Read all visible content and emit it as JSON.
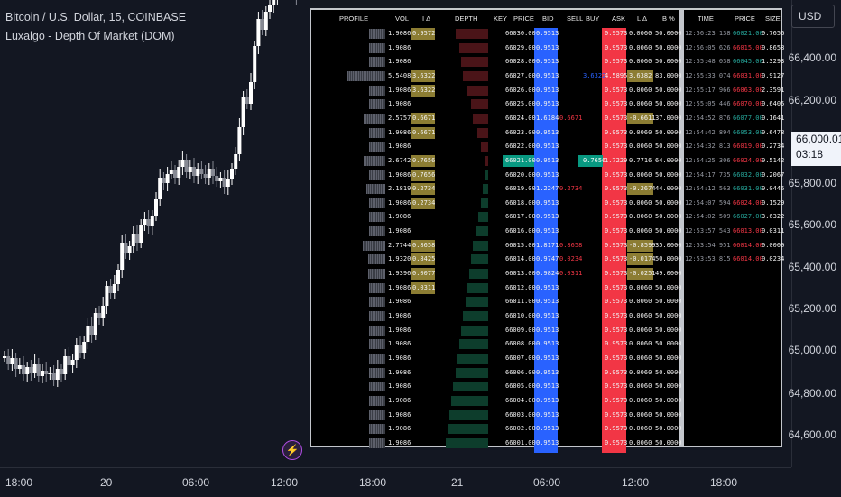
{
  "header": {
    "title": "Bitcoin / U.S. Dollar, 15, COINBASE",
    "indicator": "Luxalgo - Depth Of Market (DOM)"
  },
  "price_axis": {
    "currency": "USD",
    "ticks": [
      "66,400.00",
      "66,200.00",
      "66,000.00",
      "65,800.00",
      "65,600.00",
      "65,400.00",
      "65,200.00",
      "65,000.00",
      "64,800.00",
      "64,600.00"
    ],
    "current_price": "66,000.01",
    "countdown": "03:18"
  },
  "time_axis": {
    "ticks": [
      "18:00",
      "20",
      "06:00",
      "12:00",
      "18:00",
      "21",
      "06:00",
      "12:00",
      "18:00"
    ]
  },
  "colors": {
    "bid": "#2962ff",
    "ask": "#f23645",
    "highlight": "#9b8a3a",
    "key_green": "#089981",
    "bg": "#131722"
  },
  "dom": {
    "columns": [
      "PROFILE",
      "VOL",
      "I Δ",
      "DEPTH",
      "KEY",
      "PRICE",
      "BID",
      "SELL",
      "BUY",
      "ASK",
      "L Δ",
      "B %"
    ],
    "rows": [
      {
        "vol": "1.9086",
        "idelta": "0.9572",
        "price": "66030.00",
        "bid": "0.9513",
        "sell": "",
        "buy": "",
        "ask": "0.9573",
        "ldelta": "0.0060",
        "bpct": "50.0000",
        "prof": 0.44,
        "depth": 0.66,
        "bidtint": "red"
      },
      {
        "vol": "1.9086",
        "idelta": "",
        "price": "66029.00",
        "bid": "0.9513",
        "sell": "",
        "buy": "",
        "ask": "0.9573",
        "ldelta": "0.0060",
        "bpct": "50.0000",
        "prof": 0.44,
        "depth": 0.58,
        "bidtint": "red"
      },
      {
        "vol": "1.9086",
        "idelta": "",
        "price": "66028.00",
        "bid": "0.9513",
        "sell": "",
        "buy": "",
        "ask": "0.9573",
        "ldelta": "0.0060",
        "bpct": "50.0000",
        "prof": 0.44,
        "depth": 0.55,
        "bidtint": "red"
      },
      {
        "vol": "5.5408",
        "idelta": "3.6322",
        "price": "66027.00",
        "bid": "0.9513",
        "sell": "",
        "buy": "3.6322",
        "ask": "4.5895",
        "ldelta": "3.6382",
        "bpct": "83.0000",
        "prof": 1.0,
        "depth": 0.5,
        "bidtint": "red"
      },
      {
        "vol": "1.9086",
        "idelta": "3.6322",
        "price": "66026.00",
        "bid": "0.9513",
        "sell": "",
        "buy": "",
        "ask": "0.9573",
        "ldelta": "0.0060",
        "bpct": "50.0000",
        "prof": 0.44,
        "depth": 0.42,
        "bidtint": "red"
      },
      {
        "vol": "1.9086",
        "idelta": "",
        "price": "66025.00",
        "bid": "0.9513",
        "sell": "",
        "buy": "",
        "ask": "0.9573",
        "ldelta": "0.0060",
        "bpct": "50.0000",
        "prof": 0.44,
        "depth": 0.34,
        "bidtint": "red"
      },
      {
        "vol": "2.5757",
        "idelta": "0.6671",
        "price": "66024.00",
        "bid": "1.6184",
        "sell": "0.6671",
        "buy": "",
        "ask": "0.9573",
        "ldelta": "-0.6611",
        "bpct": "37.0000",
        "prof": 0.56,
        "depth": 0.3,
        "bidtint": "red"
      },
      {
        "vol": "1.9086",
        "idelta": "0.6671",
        "price": "66023.00",
        "bid": "0.9513",
        "sell": "",
        "buy": "",
        "ask": "0.9573",
        "ldelta": "0.0060",
        "bpct": "50.0000",
        "prof": 0.44,
        "depth": 0.22,
        "bidtint": "red"
      },
      {
        "vol": "1.9086",
        "idelta": "",
        "price": "66022.00",
        "bid": "0.9513",
        "sell": "",
        "buy": "",
        "ask": "0.9573",
        "ldelta": "0.0060",
        "bpct": "50.0000",
        "prof": 0.44,
        "depth": 0.15,
        "bidtint": "red"
      },
      {
        "vol": "2.6742",
        "idelta": "0.7656",
        "price": "66021.00",
        "bid": "0.9513",
        "sell": "",
        "buy": "0.7656",
        "ask": "1.7229",
        "ldelta": "0.7716",
        "bpct": "64.0000",
        "prof": 0.58,
        "depth": 0.08,
        "bidtint": "red",
        "key": true
      },
      {
        "vol": "1.9086",
        "idelta": "0.7656",
        "price": "66020.00",
        "bid": "0.9513",
        "sell": "",
        "buy": "",
        "ask": "0.9573",
        "ldelta": "0.0060",
        "bpct": "50.0000",
        "prof": 0.44,
        "depth": 0.05,
        "bidtint": "green"
      },
      {
        "vol": "2.1819",
        "idelta": "0.2734",
        "price": "66019.00",
        "bid": "1.2247",
        "sell": "0.2734",
        "buy": "",
        "ask": "0.9573",
        "ldelta": "-0.2674",
        "bpct": "44.0000",
        "prof": 0.5,
        "depth": 0.1,
        "bidtint": "green"
      },
      {
        "vol": "1.9086",
        "idelta": "0.2734",
        "price": "66018.00",
        "bid": "0.9513",
        "sell": "",
        "buy": "",
        "ask": "0.9573",
        "ldelta": "0.0060",
        "bpct": "50.0000",
        "prof": 0.44,
        "depth": 0.14,
        "bidtint": "green"
      },
      {
        "vol": "1.9086",
        "idelta": "",
        "price": "66017.00",
        "bid": "0.9513",
        "sell": "",
        "buy": "",
        "ask": "0.9573",
        "ldelta": "0.0060",
        "bpct": "50.0000",
        "prof": 0.44,
        "depth": 0.2,
        "bidtint": "green"
      },
      {
        "vol": "1.9086",
        "idelta": "",
        "price": "66016.00",
        "bid": "0.9513",
        "sell": "",
        "buy": "",
        "ask": "0.9573",
        "ldelta": "0.0060",
        "bpct": "50.0000",
        "prof": 0.44,
        "depth": 0.24,
        "bidtint": "green"
      },
      {
        "vol": "2.7744",
        "idelta": "0.8658",
        "price": "66015.00",
        "bid": "1.8171",
        "sell": "0.8658",
        "buy": "",
        "ask": "0.9573",
        "ldelta": "-0.8599",
        "bpct": "35.0000",
        "prof": 0.6,
        "depth": 0.3,
        "bidtint": "green"
      },
      {
        "vol": "1.9320",
        "idelta": "0.8425",
        "price": "66014.00",
        "bid": "0.9747",
        "sell": "0.0234",
        "buy": "",
        "ask": "0.9573",
        "ldelta": "-0.0174",
        "bpct": "50.0000",
        "prof": 0.45,
        "depth": 0.34,
        "bidtint": "green"
      },
      {
        "vol": "1.9396",
        "idelta": "0.0077",
        "price": "66013.00",
        "bid": "0.9824",
        "sell": "0.0311",
        "buy": "",
        "ask": "0.9573",
        "ldelta": "-0.0251",
        "bpct": "49.0000",
        "prof": 0.45,
        "depth": 0.38,
        "bidtint": "green"
      },
      {
        "vol": "1.9086",
        "idelta": "0.0311",
        "price": "66012.00",
        "bid": "0.9513",
        "sell": "",
        "buy": "",
        "ask": "0.9573",
        "ldelta": "0.0060",
        "bpct": "50.0000",
        "prof": 0.44,
        "depth": 0.42,
        "bidtint": "green"
      },
      {
        "vol": "1.9086",
        "idelta": "",
        "price": "66011.00",
        "bid": "0.9513",
        "sell": "",
        "buy": "",
        "ask": "0.9573",
        "ldelta": "0.0060",
        "bpct": "50.0000",
        "prof": 0.44,
        "depth": 0.46,
        "bidtint": "green"
      },
      {
        "vol": "1.9086",
        "idelta": "",
        "price": "66010.00",
        "bid": "0.9513",
        "sell": "",
        "buy": "",
        "ask": "0.9573",
        "ldelta": "0.0060",
        "bpct": "50.0000",
        "prof": 0.44,
        "depth": 0.5,
        "bidtint": "green"
      },
      {
        "vol": "1.9086",
        "idelta": "",
        "price": "66009.00",
        "bid": "0.9513",
        "sell": "",
        "buy": "",
        "ask": "0.9573",
        "ldelta": "0.0060",
        "bpct": "50.0000",
        "prof": 0.44,
        "depth": 0.54,
        "bidtint": "green"
      },
      {
        "vol": "1.9086",
        "idelta": "",
        "price": "66008.00",
        "bid": "0.9513",
        "sell": "",
        "buy": "",
        "ask": "0.9573",
        "ldelta": "0.0060",
        "bpct": "50.0000",
        "prof": 0.44,
        "depth": 0.58,
        "bidtint": "green"
      },
      {
        "vol": "1.9086",
        "idelta": "",
        "price": "66007.00",
        "bid": "0.9513",
        "sell": "",
        "buy": "",
        "ask": "0.9573",
        "ldelta": "0.0060",
        "bpct": "50.0000",
        "prof": 0.44,
        "depth": 0.62,
        "bidtint": "green"
      },
      {
        "vol": "1.9086",
        "idelta": "",
        "price": "66006.00",
        "bid": "0.9513",
        "sell": "",
        "buy": "",
        "ask": "0.9573",
        "ldelta": "0.0060",
        "bpct": "50.0000",
        "prof": 0.44,
        "depth": 0.66,
        "bidtint": "green"
      },
      {
        "vol": "1.9086",
        "idelta": "",
        "price": "66005.00",
        "bid": "0.9513",
        "sell": "",
        "buy": "",
        "ask": "0.9573",
        "ldelta": "0.0060",
        "bpct": "50.0000",
        "prof": 0.44,
        "depth": 0.7,
        "bidtint": "green"
      },
      {
        "vol": "1.9086",
        "idelta": "",
        "price": "66004.00",
        "bid": "0.9513",
        "sell": "",
        "buy": "",
        "ask": "0.9573",
        "ldelta": "0.0060",
        "bpct": "50.0000",
        "prof": 0.44,
        "depth": 0.74,
        "bidtint": "green"
      },
      {
        "vol": "1.9086",
        "idelta": "",
        "price": "66003.00",
        "bid": "0.9513",
        "sell": "",
        "buy": "",
        "ask": "0.9573",
        "ldelta": "0.0060",
        "bpct": "50.0000",
        "prof": 0.44,
        "depth": 0.78,
        "bidtint": "green"
      },
      {
        "vol": "1.9086",
        "idelta": "",
        "price": "66002.00",
        "bid": "0.9513",
        "sell": "",
        "buy": "",
        "ask": "0.9573",
        "ldelta": "0.0060",
        "bpct": "50.0000",
        "prof": 0.44,
        "depth": 0.82,
        "bidtint": "green"
      },
      {
        "vol": "1.9086",
        "idelta": "",
        "price": "66001.00",
        "bid": "0.9513",
        "sell": "",
        "buy": "",
        "ask": "0.9573",
        "ldelta": "0.0060",
        "bpct": "50.0000",
        "prof": 0.44,
        "depth": 0.86,
        "bidtint": "green"
      }
    ]
  },
  "trades": {
    "columns": [
      "TIME",
      "PRICE",
      "SIZE"
    ],
    "rows": [
      {
        "time": "12:56:23 138",
        "price": "66021.00",
        "size": "0.7656",
        "side": "buy"
      },
      {
        "time": "12:56:05 626",
        "price": "66015.00",
        "size": "0.8658",
        "side": "sell"
      },
      {
        "time": "12:55:48 038",
        "price": "66045.00",
        "size": "1.3293",
        "side": "buy"
      },
      {
        "time": "12:55:33 074",
        "price": "66031.00",
        "size": "0.9127",
        "side": "sell"
      },
      {
        "time": "12:55:17 966",
        "price": "66063.00",
        "size": "2.3591",
        "side": "sell"
      },
      {
        "time": "12:55:05 446",
        "price": "66070.00",
        "size": "0.6405",
        "side": "sell"
      },
      {
        "time": "12:54:52 876",
        "price": "66077.00",
        "size": "0.1641",
        "side": "buy"
      },
      {
        "time": "12:54:42 894",
        "price": "66053.00",
        "size": "0.6478",
        "side": "buy"
      },
      {
        "time": "12:54:32 813",
        "price": "66019.00",
        "size": "0.2734",
        "side": "sell"
      },
      {
        "time": "12:54:25 306",
        "price": "66024.00",
        "size": "0.5142",
        "side": "sell"
      },
      {
        "time": "12:54:17 735",
        "price": "66032.00",
        "size": "0.2067",
        "side": "buy"
      },
      {
        "time": "12:54:12 563",
        "price": "66031.00",
        "size": "0.0446",
        "side": "buy"
      },
      {
        "time": "12:54:07 594",
        "price": "66024.00",
        "size": "0.1529",
        "side": "sell"
      },
      {
        "time": "12:54:02 509",
        "price": "66027.00",
        "size": "3.6322",
        "side": "buy"
      },
      {
        "time": "12:53:57 543",
        "price": "66013.00",
        "size": "0.0311",
        "side": "sell"
      },
      {
        "time": "12:53:54 951",
        "price": "66014.00",
        "size": "0.0000",
        "side": "sell"
      },
      {
        "time": "12:53:53 815",
        "price": "66014.00",
        "size": "0.0234",
        "side": "sell"
      }
    ]
  }
}
